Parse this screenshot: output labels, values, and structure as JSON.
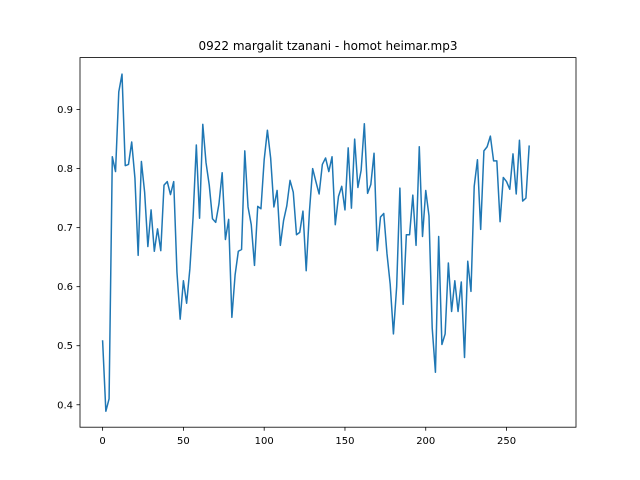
{
  "chart_data": {
    "type": "line",
    "title": "0922 margalit tzanani - homot heimar.mp3",
    "xlabel": "",
    "ylabel": "",
    "xlim": [
      -14,
      293
    ],
    "ylim": [
      0.362,
      0.988
    ],
    "xticks": [
      0,
      50,
      100,
      150,
      200,
      250
    ],
    "yticks": [
      0.4,
      0.5,
      0.6,
      0.7,
      0.8,
      0.9
    ],
    "xtick_labels": [
      "0",
      "50",
      "100",
      "150",
      "200",
      "250"
    ],
    "ytick_labels": [
      "0.4",
      "0.5",
      "0.6",
      "0.7",
      "0.8",
      "0.9"
    ],
    "grid": false,
    "legend": "none",
    "series": [
      {
        "color": "#1f77b4",
        "points": [
          [
            0,
            0.508
          ],
          [
            2,
            0.389
          ],
          [
            4,
            0.41
          ],
          [
            6,
            0.82
          ],
          [
            8,
            0.795
          ],
          [
            10,
            0.93
          ],
          [
            12,
            0.96
          ],
          [
            14,
            0.805
          ],
          [
            16,
            0.807
          ],
          [
            18,
            0.845
          ],
          [
            20,
            0.784
          ],
          [
            22,
            0.653
          ],
          [
            24,
            0.812
          ],
          [
            26,
            0.76
          ],
          [
            28,
            0.668
          ],
          [
            30,
            0.73
          ],
          [
            32,
            0.66
          ],
          [
            34,
            0.698
          ],
          [
            36,
            0.661
          ],
          [
            38,
            0.772
          ],
          [
            40,
            0.778
          ],
          [
            42,
            0.756
          ],
          [
            44,
            0.778
          ],
          [
            46,
            0.625
          ],
          [
            48,
            0.545
          ],
          [
            50,
            0.61
          ],
          [
            52,
            0.572
          ],
          [
            54,
            0.63
          ],
          [
            56,
            0.718
          ],
          [
            58,
            0.84
          ],
          [
            60,
            0.716
          ],
          [
            62,
            0.875
          ],
          [
            64,
            0.81
          ],
          [
            66,
            0.772
          ],
          [
            68,
            0.715
          ],
          [
            70,
            0.709
          ],
          [
            72,
            0.74
          ],
          [
            74,
            0.793
          ],
          [
            76,
            0.68
          ],
          [
            78,
            0.714
          ],
          [
            80,
            0.548
          ],
          [
            82,
            0.62
          ],
          [
            84,
            0.66
          ],
          [
            86,
            0.663
          ],
          [
            88,
            0.83
          ],
          [
            90,
            0.735
          ],
          [
            92,
            0.705
          ],
          [
            94,
            0.636
          ],
          [
            96,
            0.736
          ],
          [
            98,
            0.732
          ],
          [
            100,
            0.815
          ],
          [
            102,
            0.865
          ],
          [
            104,
            0.818
          ],
          [
            106,
            0.735
          ],
          [
            108,
            0.763
          ],
          [
            110,
            0.67
          ],
          [
            112,
            0.712
          ],
          [
            114,
            0.737
          ],
          [
            116,
            0.78
          ],
          [
            118,
            0.76
          ],
          [
            120,
            0.688
          ],
          [
            122,
            0.692
          ],
          [
            124,
            0.728
          ],
          [
            126,
            0.627
          ],
          [
            128,
            0.727
          ],
          [
            130,
            0.8
          ],
          [
            132,
            0.778
          ],
          [
            134,
            0.757
          ],
          [
            136,
            0.807
          ],
          [
            138,
            0.818
          ],
          [
            140,
            0.795
          ],
          [
            142,
            0.82
          ],
          [
            144,
            0.705
          ],
          [
            146,
            0.753
          ],
          [
            148,
            0.77
          ],
          [
            150,
            0.73
          ],
          [
            152,
            0.835
          ],
          [
            154,
            0.733
          ],
          [
            156,
            0.85
          ],
          [
            158,
            0.768
          ],
          [
            160,
            0.797
          ],
          [
            162,
            0.876
          ],
          [
            164,
            0.758
          ],
          [
            166,
            0.773
          ],
          [
            168,
            0.826
          ],
          [
            170,
            0.661
          ],
          [
            172,
            0.718
          ],
          [
            174,
            0.724
          ],
          [
            176,
            0.656
          ],
          [
            178,
            0.604
          ],
          [
            180,
            0.52
          ],
          [
            182,
            0.6
          ],
          [
            184,
            0.767
          ],
          [
            186,
            0.57
          ],
          [
            188,
            0.688
          ],
          [
            190,
            0.688
          ],
          [
            192,
            0.755
          ],
          [
            194,
            0.67
          ],
          [
            196,
            0.837
          ],
          [
            198,
            0.685
          ],
          [
            200,
            0.763
          ],
          [
            202,
            0.72
          ],
          [
            204,
            0.53
          ],
          [
            206,
            0.455
          ],
          [
            208,
            0.685
          ],
          [
            210,
            0.502
          ],
          [
            212,
            0.52
          ],
          [
            214,
            0.64
          ],
          [
            216,
            0.558
          ],
          [
            218,
            0.61
          ],
          [
            220,
            0.558
          ],
          [
            222,
            0.608
          ],
          [
            224,
            0.48
          ],
          [
            226,
            0.643
          ],
          [
            228,
            0.592
          ],
          [
            230,
            0.77
          ],
          [
            232,
            0.815
          ],
          [
            234,
            0.697
          ],
          [
            236,
            0.83
          ],
          [
            238,
            0.837
          ],
          [
            240,
            0.855
          ],
          [
            242,
            0.813
          ],
          [
            244,
            0.813
          ],
          [
            246,
            0.71
          ],
          [
            248,
            0.785
          ],
          [
            250,
            0.778
          ],
          [
            252,
            0.765
          ],
          [
            254,
            0.825
          ],
          [
            256,
            0.757
          ],
          [
            258,
            0.848
          ],
          [
            260,
            0.745
          ],
          [
            262,
            0.75
          ],
          [
            264,
            0.838
          ]
        ]
      }
    ]
  }
}
